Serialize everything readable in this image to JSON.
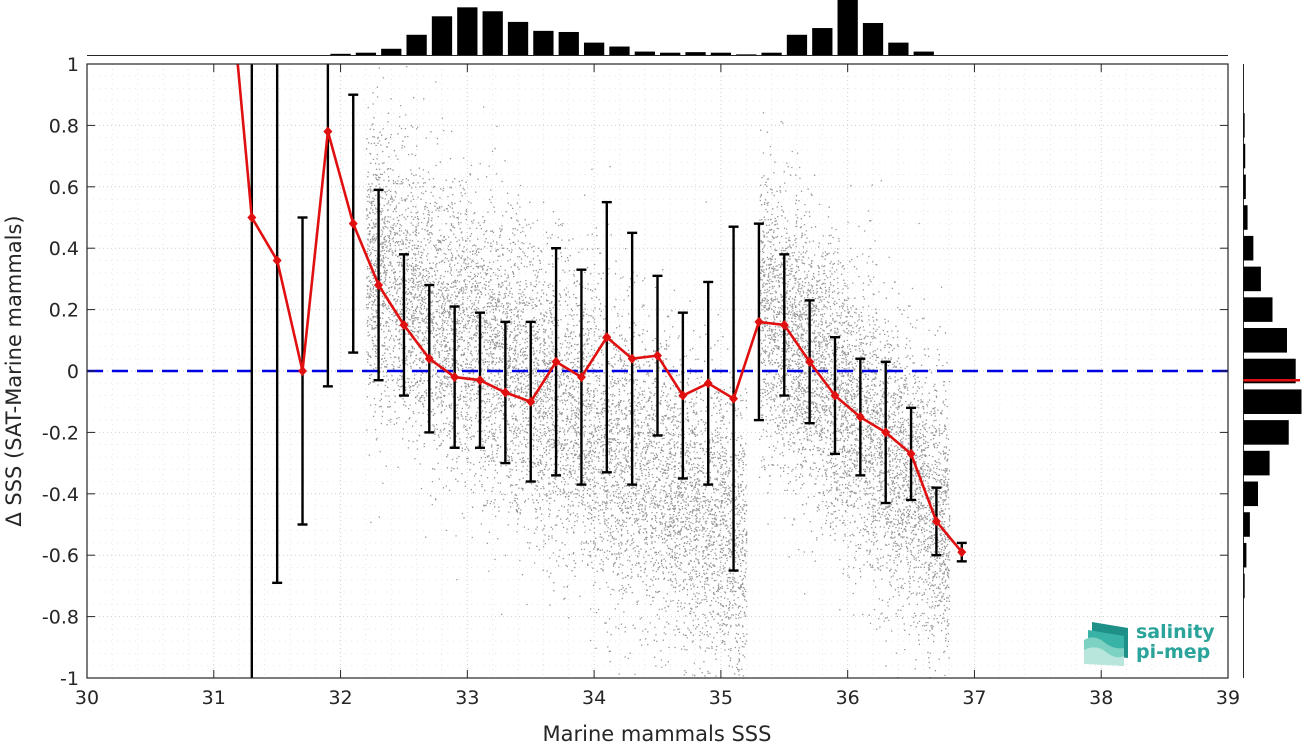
{
  "chart_data": {
    "type": "scatter",
    "title": "",
    "xlabel": "Marine mammals SSS",
    "ylabel": "Δ SSS (SAT-Marine mammals)",
    "xlim": [
      30,
      39
    ],
    "ylim": [
      -1,
      1
    ],
    "xticks": [
      30,
      31,
      32,
      33,
      34,
      35,
      36,
      37,
      38,
      39
    ],
    "yticks": [
      -1,
      -0.8,
      -0.6,
      -0.4,
      -0.2,
      0,
      0.2,
      0.4,
      0.6,
      0.8,
      1
    ],
    "grid": true,
    "reference_line": {
      "y": 0,
      "style": "dashed",
      "color": "#0000e0"
    },
    "colors": {
      "scatter": "#8c8c8c",
      "mean": "#e01010",
      "errorbar": "#000000",
      "histogram": "#000000"
    },
    "binned_mean": {
      "x": [
        31.1,
        31.3,
        31.5,
        31.7,
        31.9,
        32.1,
        32.3,
        32.5,
        32.7,
        32.9,
        33.1,
        33.3,
        33.5,
        33.7,
        33.9,
        34.1,
        34.3,
        34.5,
        34.7,
        34.9,
        35.1,
        35.3,
        35.5,
        35.7,
        35.9,
        36.1,
        36.3,
        36.5,
        36.7,
        36.9
      ],
      "mean": [
        1.4,
        0.5,
        0.36,
        0.0,
        0.78,
        0.48,
        0.28,
        0.15,
        0.04,
        -0.02,
        -0.03,
        -0.07,
        -0.1,
        0.03,
        -0.02,
        0.11,
        0.04,
        0.05,
        -0.08,
        -0.04,
        -0.09,
        0.16,
        0.15,
        0.03,
        -0.08,
        -0.15,
        -0.2,
        -0.27,
        -0.49,
        -0.59
      ],
      "std": [
        2.5,
        1.8,
        1.05,
        0.5,
        0.83,
        0.42,
        0.31,
        0.23,
        0.24,
        0.23,
        0.22,
        0.23,
        0.26,
        0.37,
        0.35,
        0.44,
        0.41,
        0.26,
        0.27,
        0.33,
        0.56,
        0.32,
        0.23,
        0.2,
        0.19,
        0.19,
        0.23,
        0.15,
        0.11,
        0.03
      ]
    },
    "scatter_clusters": [
      {
        "x_range": [
          32.2,
          35.2
        ],
        "trend_slope": -0.31,
        "center": [
          33.5,
          -0.05
        ],
        "spread": 0.24
      },
      {
        "x_range": [
          35.3,
          36.8
        ],
        "trend_slope": -0.5,
        "center": [
          35.8,
          -0.02
        ],
        "spread": 0.23
      }
    ],
    "top_histogram": {
      "bin_centers": [
        32.0,
        32.2,
        32.4,
        32.6,
        32.8,
        33.0,
        33.2,
        33.4,
        33.6,
        33.8,
        34.0,
        34.2,
        34.4,
        34.6,
        34.8,
        35.0,
        35.2,
        35.4,
        35.6,
        35.8,
        36.0,
        36.2,
        36.4,
        36.6
      ],
      "counts": [
        0.03,
        0.05,
        0.12,
        0.37,
        0.7,
        0.86,
        0.79,
        0.6,
        0.44,
        0.42,
        0.23,
        0.16,
        0.07,
        0.05,
        0.06,
        0.05,
        0.02,
        0.05,
        0.37,
        0.49,
        1.0,
        0.58,
        0.23,
        0.07
      ]
    },
    "right_histogram": {
      "bin_centers": [
        0.8,
        0.7,
        0.6,
        0.5,
        0.4,
        0.3,
        0.2,
        0.1,
        0.0,
        -0.1,
        -0.2,
        -0.3,
        -0.4,
        -0.5,
        -0.6,
        -0.7
      ],
      "counts": [
        0.02,
        0.03,
        0.04,
        0.07,
        0.17,
        0.3,
        0.5,
        0.75,
        0.9,
        1.0,
        0.78,
        0.45,
        0.25,
        0.11,
        0.05,
        0.02
      ]
    },
    "right_histogram_mean_marker": -0.03
  },
  "logo": {
    "line1": "salinity",
    "line2": "pi-mep",
    "color": "#2aa39a"
  }
}
